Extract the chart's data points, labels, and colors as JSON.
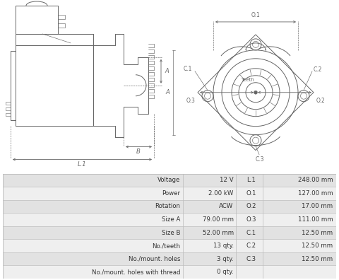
{
  "table_rows": [
    [
      "Voltage",
      "12 V",
      "L.1",
      "248.00 mm"
    ],
    [
      "Power",
      "2.00 kW",
      "O.1",
      "127.00 mm"
    ],
    [
      "Rotation",
      "ACW",
      "O.2",
      "17.00 mm"
    ],
    [
      "Size A",
      "79.00 mm",
      "O.3",
      "111.00 mm"
    ],
    [
      "Size B",
      "52.00 mm",
      "C.1",
      "12.50 mm"
    ],
    [
      "No./teeth",
      "13 qty.",
      "C.2",
      "12.50 mm"
    ],
    [
      "No./mount. holes",
      "3 qty.",
      "C.3",
      "12.50 mm"
    ],
    [
      "No./mount. holes with thread",
      "0 qty.",
      "",
      ""
    ]
  ],
  "row_colors": [
    "#e2e2e2",
    "#efefef",
    "#e2e2e2",
    "#efefef",
    "#e2e2e2",
    "#efefef",
    "#e2e2e2",
    "#efefef"
  ],
  "bg_color": "#ffffff",
  "border_color": "#bbbbbb",
  "text_color": "#333333",
  "line_color": "#666666"
}
